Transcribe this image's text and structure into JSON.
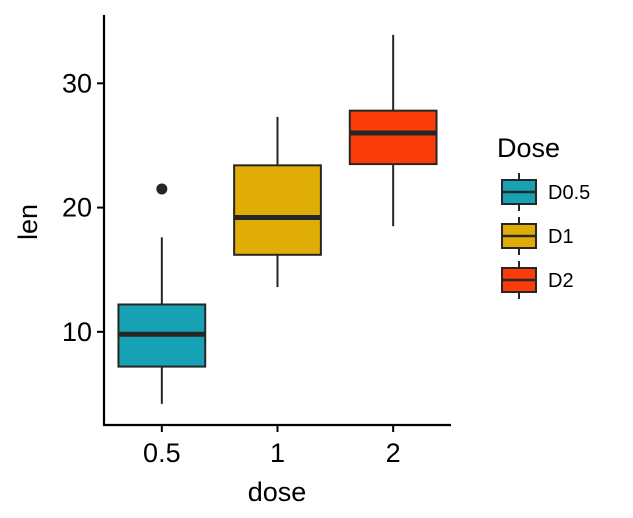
{
  "chart_data": {
    "type": "box",
    "title": "",
    "xlabel": "dose",
    "ylabel": "len",
    "categories": [
      "0.5",
      "1",
      "2"
    ],
    "ylim": [
      2.5,
      35.5
    ],
    "yticks": [
      10,
      20,
      30
    ],
    "ytick_labels": [
      "10",
      "20",
      "30"
    ],
    "grid": false,
    "legend": {
      "title": "Dose",
      "position": "right",
      "entries": [
        "D0.5",
        "D1",
        "D2"
      ]
    },
    "boxes": [
      {
        "category": "0.5",
        "legend": "D0.5",
        "color": "#17A3B5",
        "whisker_low": 4.2,
        "q1": 7.2,
        "median": 9.8,
        "q3": 12.2,
        "whisker_high": 17.6,
        "outliers": [
          21.5
        ]
      },
      {
        "category": "1",
        "legend": "D1",
        "color": "#E0AC06",
        "whisker_low": 13.6,
        "q1": 16.2,
        "median": 19.2,
        "q3": 23.4,
        "whisker_high": 27.3,
        "outliers": []
      },
      {
        "category": "2",
        "legend": "D2",
        "color": "#FC3C08",
        "whisker_low": 18.5,
        "q1": 23.5,
        "median": 26.0,
        "q3": 27.8,
        "whisker_high": 33.9,
        "outliers": []
      }
    ]
  }
}
